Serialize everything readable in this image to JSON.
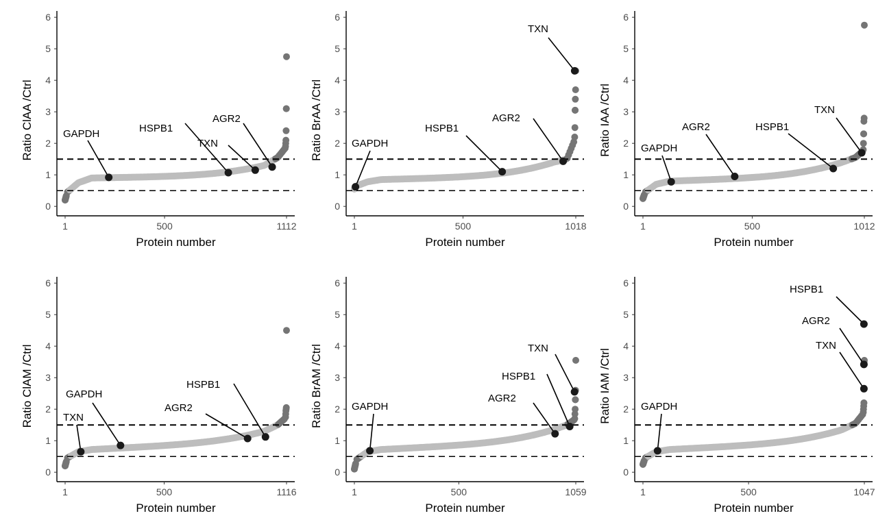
{
  "colors": {
    "light_points": "#bdbdbd",
    "dark_points": "#757575",
    "highlight": "#1a1a1a",
    "threshold_line": "#000000"
  },
  "chart_data": [
    {
      "type": "scatter",
      "xlabel": "Protein number",
      "ylabel": "Ratio  ClAA /Ctrl",
      "n": 1112,
      "xticks": [
        "1",
        "500",
        "1112"
      ],
      "yticks": [
        "0",
        "1",
        "2",
        "3",
        "4",
        "5",
        "6"
      ],
      "ylim": [
        0,
        6
      ],
      "threshold_lines": [
        1.5,
        0.5
      ],
      "curve": {
        "lo": 0.2,
        "q1": 0.45,
        "q2": 0.75,
        "plateau_lo": 0.9,
        "plateau_hi": 1.3,
        "tail_start": 1.55,
        "tail_high": [
          1.9,
          2.0,
          2.1,
          2.4,
          3.1,
          4.75
        ]
      },
      "highlights": [
        {
          "label": "GAPDH",
          "x": 220,
          "y": 0.92
        },
        {
          "label": "HSPB1",
          "x": 820,
          "y": 1.07
        },
        {
          "label": "TXN",
          "x": 955,
          "y": 1.15
        },
        {
          "label": "AGR2",
          "x": 1040,
          "y": 1.25
        }
      ]
    },
    {
      "type": "scatter",
      "xlabel": "Protein number",
      "ylabel": "Ratio  BrAA /Ctrl",
      "n": 1018,
      "xticks": [
        "1",
        "500",
        "1018"
      ],
      "yticks": [
        "0",
        "1",
        "2",
        "3",
        "4",
        "5",
        "6"
      ],
      "ylim": [
        0,
        6
      ],
      "threshold_lines": [
        1.5,
        0.5
      ],
      "curve": {
        "lo": 0.55,
        "q1": 0.65,
        "q2": 0.78,
        "plateau_lo": 0.85,
        "plateau_hi": 1.4,
        "tail_start": 1.5,
        "tail_high": [
          2.2,
          2.5,
          3.05,
          3.4,
          3.7,
          4.3
        ]
      },
      "highlights": [
        {
          "label": "GAPDH",
          "x": 6,
          "y": 0.62
        },
        {
          "label": "HSPB1",
          "x": 680,
          "y": 1.1
        },
        {
          "label": "AGR2",
          "x": 960,
          "y": 1.43
        },
        {
          "label": "TXN",
          "x": 1013,
          "y": 4.3
        }
      ]
    },
    {
      "type": "scatter",
      "xlabel": "Protein number",
      "ylabel": "Ratio  IAA /Ctrl",
      "n": 1012,
      "xticks": [
        "1",
        "500",
        "1012"
      ],
      "yticks": [
        "0",
        "1",
        "2",
        "3",
        "4",
        "5",
        "6"
      ],
      "ylim": [
        0,
        6
      ],
      "threshold_lines": [
        1.5,
        0.5
      ],
      "curve": {
        "lo": 0.25,
        "q1": 0.45,
        "q2": 0.7,
        "plateau_lo": 0.8,
        "plateau_hi": 1.4,
        "tail_start": 1.55,
        "tail_high": [
          1.8,
          2.0,
          2.3,
          2.7,
          2.8,
          5.75
        ]
      },
      "highlights": [
        {
          "label": "GAPDH",
          "x": 130,
          "y": 0.78
        },
        {
          "label": "AGR2",
          "x": 420,
          "y": 0.95
        },
        {
          "label": "HSPB1",
          "x": 870,
          "y": 1.2
        },
        {
          "label": "TXN",
          "x": 1000,
          "y": 1.7
        }
      ]
    },
    {
      "type": "scatter",
      "xlabel": "Protein number",
      "ylabel": "Ratio  ClAM /Ctrl",
      "n": 1116,
      "xticks": [
        "1",
        "500",
        "1116"
      ],
      "yticks": [
        "0",
        "1",
        "2",
        "3",
        "4",
        "5",
        "6"
      ],
      "ylim": [
        0,
        6
      ],
      "threshold_lines": [
        1.5,
        0.5
      ],
      "curve": {
        "lo": 0.2,
        "q1": 0.45,
        "q2": 0.65,
        "plateau_lo": 0.72,
        "plateau_hi": 1.3,
        "tail_start": 1.5,
        "tail_high": [
          1.75,
          1.85,
          1.95,
          2.0,
          2.05,
          4.5
        ]
      },
      "highlights": [
        {
          "label": "TXN",
          "x": 80,
          "y": 0.65
        },
        {
          "label": "GAPDH",
          "x": 280,
          "y": 0.85
        },
        {
          "label": "AGR2",
          "x": 920,
          "y": 1.07
        },
        {
          "label": "HSPB1",
          "x": 1010,
          "y": 1.12
        }
      ]
    },
    {
      "type": "scatter",
      "xlabel": "Protein number",
      "ylabel": "Ratio  BrAM /Ctrl",
      "n": 1059,
      "xticks": [
        "1",
        "500",
        "1059"
      ],
      "yticks": [
        "0",
        "1",
        "2",
        "3",
        "4",
        "5",
        "6"
      ],
      "ylim": [
        0,
        6
      ],
      "threshold_lines": [
        1.5,
        0.5
      ],
      "curve": {
        "lo": 0.1,
        "q1": 0.4,
        "q2": 0.65,
        "plateau_lo": 0.72,
        "plateau_hi": 1.35,
        "tail_start": 1.5,
        "tail_high": [
          1.7,
          1.85,
          2.0,
          2.3,
          2.6,
          3.55
        ]
      },
      "highlights": [
        {
          "label": "GAPDH",
          "x": 75,
          "y": 0.68
        },
        {
          "label": "AGR2",
          "x": 960,
          "y": 1.22
        },
        {
          "label": "HSPB1",
          "x": 1030,
          "y": 1.45
        },
        {
          "label": "TXN",
          "x": 1053,
          "y": 2.55
        }
      ]
    },
    {
      "type": "scatter",
      "xlabel": "Protein number",
      "ylabel": "Ratio  IAM /Ctrl",
      "n": 1047,
      "xticks": [
        "1",
        "500",
        "1047"
      ],
      "yticks": [
        "0",
        "1",
        "2",
        "3",
        "4",
        "5",
        "6"
      ],
      "ylim": [
        0,
        6
      ],
      "threshold_lines": [
        1.5,
        0.5
      ],
      "curve": {
        "lo": 0.25,
        "q1": 0.45,
        "q2": 0.65,
        "plateau_lo": 0.72,
        "plateau_hi": 1.35,
        "tail_start": 1.55,
        "tail_high": [
          1.9,
          2.0,
          2.1,
          2.2,
          3.5,
          3.55
        ]
      },
      "highlights": [
        {
          "label": "GAPDH",
          "x": 70,
          "y": 0.68
        },
        {
          "label": "TXN",
          "x": 1045,
          "y": 2.65
        },
        {
          "label": "AGR2",
          "x": 1045,
          "y": 3.42
        },
        {
          "label": "HSPB1",
          "x": 1045,
          "y": 4.7
        }
      ]
    }
  ]
}
